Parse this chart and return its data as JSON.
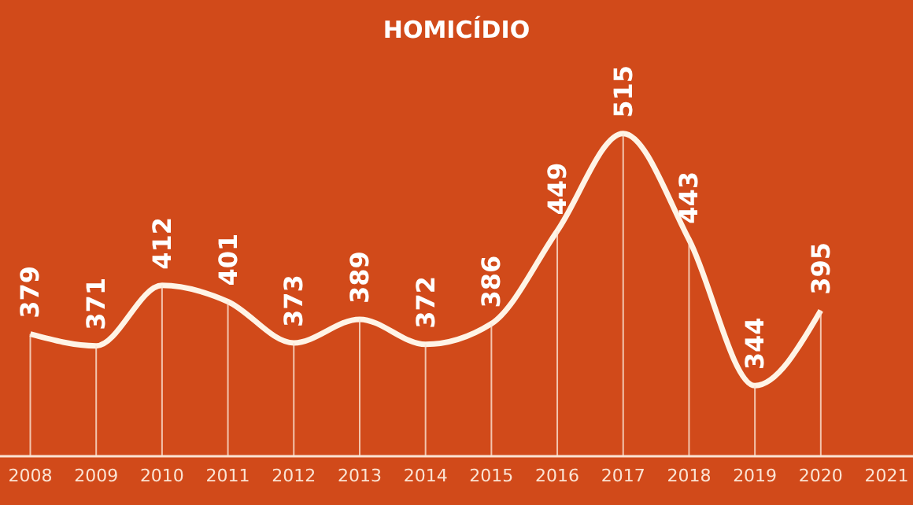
{
  "chart_data": {
    "type": "line",
    "title": "HOMICÍDIO",
    "categories": [
      "2008",
      "2009",
      "2010",
      "2011",
      "2012",
      "2013",
      "2014",
      "2015",
      "2016",
      "2017",
      "2018",
      "2019",
      "2020",
      "2021"
    ],
    "series": [
      {
        "color": "#fff4e6",
        "values": [
          379,
          371,
          412,
          401,
          373,
          389,
          372,
          386,
          449,
          515,
          443,
          344,
          395,
          null
        ]
      }
    ],
    "data_labels": true,
    "marker": "none",
    "line_style": "solid",
    "grid": "x",
    "legend": false,
    "tick_labels": "x"
  }
}
